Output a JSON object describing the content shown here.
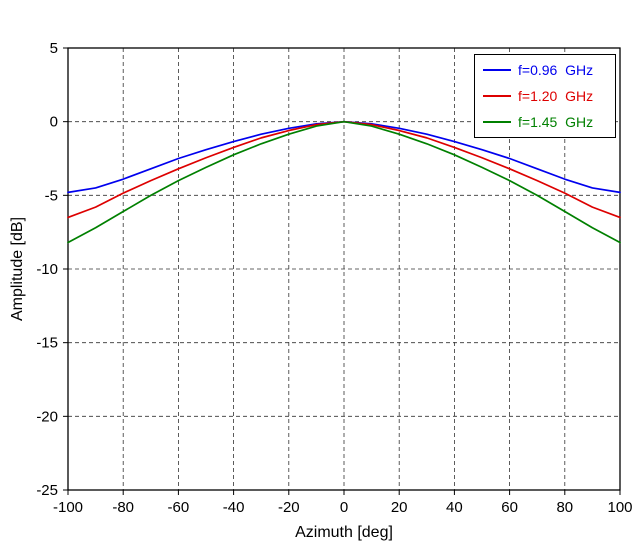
{
  "chart_data": {
    "type": "line",
    "title": "",
    "xlabel": "Azimuth [deg]",
    "ylabel": "Amplitude [dB]",
    "xlim": [
      -100,
      100
    ],
    "ylim": [
      -25,
      5
    ],
    "xticks": [
      -100,
      -80,
      -60,
      -40,
      -20,
      0,
      20,
      40,
      60,
      80,
      100
    ],
    "yticks": [
      5,
      0,
      -5,
      -10,
      -15,
      -20,
      -25
    ],
    "grid": true,
    "grid_style": "dashed",
    "legend_position": "top-right",
    "x": [
      -100,
      -90,
      -80,
      -70,
      -60,
      -50,
      -40,
      -30,
      -20,
      -10,
      0,
      10,
      20,
      30,
      40,
      50,
      60,
      70,
      80,
      90,
      100
    ],
    "series": [
      {
        "name": "f=0.96  GHz",
        "color": "#0000EE",
        "values": [
          -4.8,
          -4.5,
          -3.9,
          -3.2,
          -2.5,
          -1.9,
          -1.35,
          -0.85,
          -0.45,
          -0.15,
          0,
          -0.15,
          -0.45,
          -0.85,
          -1.35,
          -1.9,
          -2.5,
          -3.2,
          -3.9,
          -4.5,
          -4.8
        ]
      },
      {
        "name": "f=1.20  GHz",
        "color": "#DD0000",
        "values": [
          -6.5,
          -5.8,
          -4.85,
          -4.0,
          -3.2,
          -2.45,
          -1.75,
          -1.1,
          -0.6,
          -0.2,
          0,
          -0.2,
          -0.6,
          -1.1,
          -1.75,
          -2.45,
          -3.2,
          -4.0,
          -4.85,
          -5.8,
          -6.5
        ]
      },
      {
        "name": "f=1.45  GHz",
        "color": "#008000",
        "values": [
          -8.2,
          -7.2,
          -6.1,
          -5.0,
          -4.0,
          -3.1,
          -2.25,
          -1.5,
          -0.85,
          -0.3,
          0,
          -0.3,
          -0.85,
          -1.5,
          -2.25,
          -3.1,
          -4.0,
          -5.0,
          -6.1,
          -7.2,
          -8.2
        ]
      }
    ]
  }
}
